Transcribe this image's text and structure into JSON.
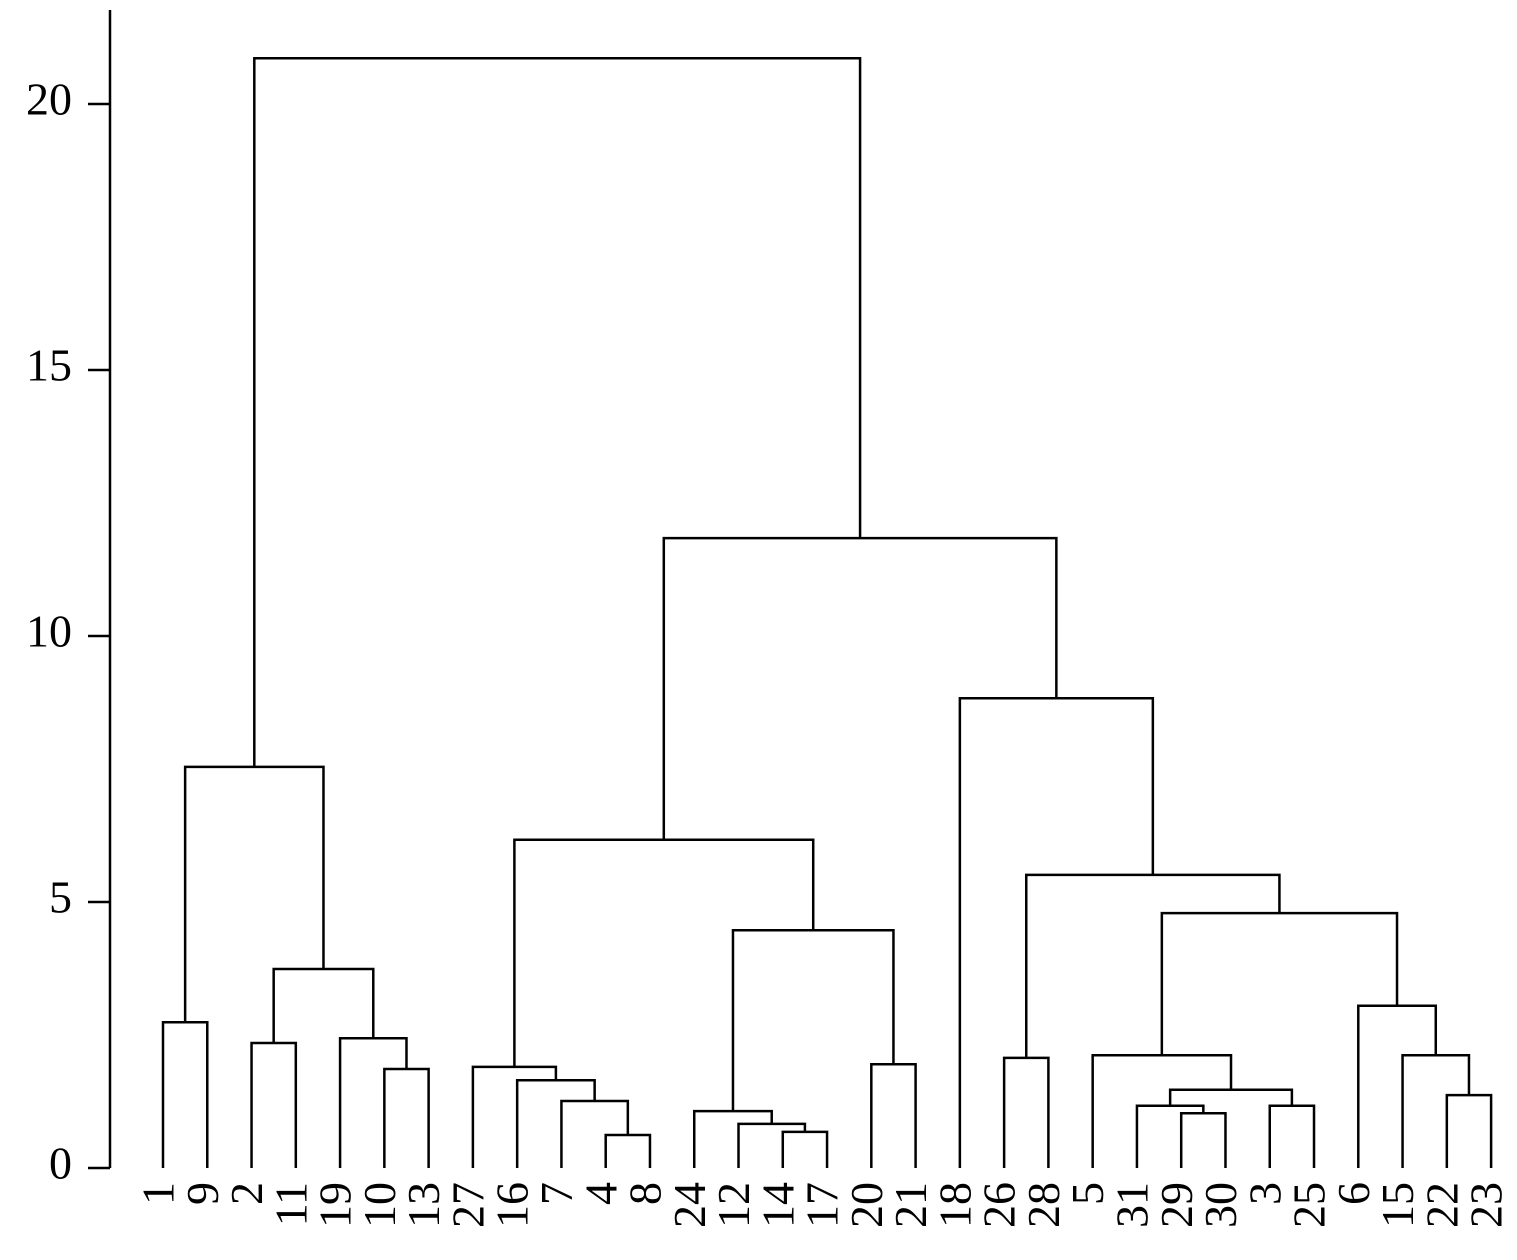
{
  "chart_data": {
    "type": "dendrogram",
    "ylim": [
      0,
      21.8
    ],
    "yticks": [
      0,
      5,
      10,
      15,
      20
    ],
    "tree": {
      "height": 20.86,
      "children": [
        {
          "height": 7.54,
          "children": [
            {
              "height": 2.74,
              "children": [
                "1",
                "9"
              ]
            },
            {
              "height": 3.74,
              "children": [
                {
                  "height": 2.35,
                  "children": [
                    "2",
                    "11"
                  ]
                },
                {
                  "height": 2.44,
                  "children": [
                    "19",
                    {
                      "height": 1.86,
                      "children": [
                        "10",
                        "13"
                      ]
                    }
                  ]
                }
              ]
            }
          ]
        },
        {
          "height": 11.84,
          "children": [
            {
              "height": 6.17,
              "children": [
                {
                  "height": 1.9,
                  "children": [
                    "27",
                    {
                      "height": 1.65,
                      "children": [
                        "16",
                        {
                          "height": 1.26,
                          "children": [
                            "7",
                            {
                              "height": 0.62,
                              "children": [
                                "4",
                                "8"
                              ]
                            }
                          ]
                        }
                      ]
                    }
                  ]
                },
                {
                  "height": 4.47,
                  "children": [
                    {
                      "height": 1.07,
                      "children": [
                        "24",
                        {
                          "height": 0.83,
                          "children": [
                            "12",
                            {
                              "height": 0.68,
                              "children": [
                                "14",
                                "17"
                              ]
                            }
                          ]
                        }
                      ]
                    },
                    {
                      "height": 1.95,
                      "children": [
                        "20",
                        "21"
                      ]
                    }
                  ]
                }
              ]
            },
            {
              "height": 8.83,
              "children": [
                "18",
                {
                  "height": 5.51,
                  "children": [
                    {
                      "height": 2.07,
                      "children": [
                        "26",
                        "28"
                      ]
                    },
                    {
                      "height": 4.79,
                      "children": [
                        {
                          "height": 2.12,
                          "children": [
                            "5",
                            {
                              "height": 1.47,
                              "children": [
                                {
                                  "height": 1.17,
                                  "children": [
                                    "31",
                                    {
                                      "height": 1.03,
                                      "children": [
                                        "29",
                                        "30"
                                      ]
                                    }
                                  ]
                                },
                                {
                                  "height": 1.17,
                                  "children": [
                                    "3",
                                    "25"
                                  ]
                                }
                              ]
                            }
                          ]
                        },
                        {
                          "height": 3.05,
                          "children": [
                            "6",
                            {
                              "height": 2.12,
                              "children": [
                                "15",
                                {
                                  "height": 1.37,
                                  "children": [
                                    "22",
                                    "23"
                                  ]
                                }
                              ]
                            }
                          ]
                        }
                      ]
                    }
                  ]
                }
              ]
            }
          ]
        }
      ]
    }
  }
}
